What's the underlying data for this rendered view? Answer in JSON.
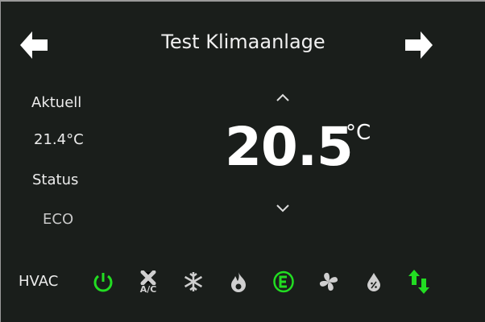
{
  "header": {
    "title": "Test Klimaanlage",
    "prev_icon": "arrow-left-icon",
    "next_icon": "arrow-right-icon"
  },
  "left": {
    "current_label": "Aktuell",
    "current_value": "21.4°C",
    "status_label": "Status",
    "status_value": "ECO"
  },
  "setpoint": {
    "value": "20.5",
    "unit": "°C",
    "up_icon": "chevron-up-icon",
    "down_icon": "chevron-down-icon"
  },
  "hvac": {
    "label": "HVAC",
    "modes": [
      {
        "name": "power",
        "active": true
      },
      {
        "name": "ac",
        "label": "A/C",
        "active": false
      },
      {
        "name": "cool",
        "active": false
      },
      {
        "name": "heat",
        "active": false
      },
      {
        "name": "eco",
        "label": "E",
        "active": true
      },
      {
        "name": "fan",
        "active": false
      },
      {
        "name": "dry",
        "active": false
      },
      {
        "name": "auto",
        "active": true
      }
    ]
  },
  "colors": {
    "background": "#1a1e1b",
    "active": "#22dd22",
    "inactive": "#cfcfcf",
    "text": "#ececec"
  }
}
